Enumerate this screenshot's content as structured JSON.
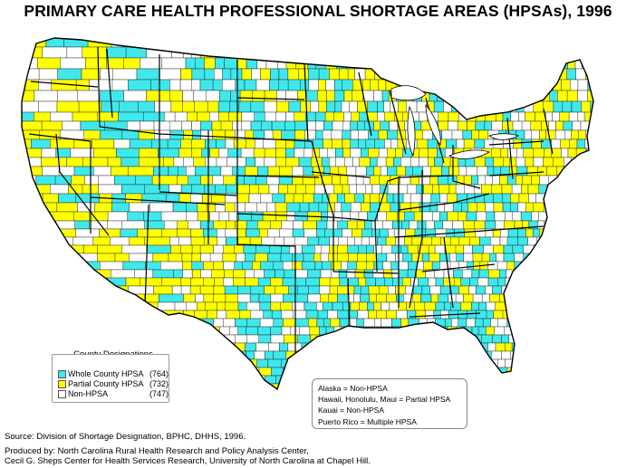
{
  "title": "PRIMARY CARE HEALTH PROFESSIONAL SHORTAGE AREAS (HPSAs), 1996",
  "colors": {
    "whole": "#40e8ec",
    "partial": "#ffff00",
    "none": "#ffffff",
    "border": "#000000"
  },
  "legend": {
    "title": "County Designations",
    "items": [
      {
        "label": "Whole County HPSA",
        "count": "(764)",
        "color": "#40e8ec"
      },
      {
        "label": "Partial County HPSA",
        "count": "(732)",
        "color": "#ffff00"
      },
      {
        "label": "Non-HPSA",
        "count": "(747)",
        "color": "#ffffff"
      }
    ]
  },
  "notes": [
    "Alaska = Non-HPSA",
    "Hawaii, Honolulu, Maui = Partial HPSA",
    "Kauai = Non-HPSA",
    "Puerto Rico = Multiple HPSA"
  ],
  "source": "Source: Division of Shortage Designation, BPHC, DHHS, 1996.",
  "produced": [
    "Produced by: North Carolina Rural Health Research and Policy Analysis Center,",
    "Cecil G. Sheps Center for Health Services Research, University of North Carolina at Chapel Hill."
  ]
}
